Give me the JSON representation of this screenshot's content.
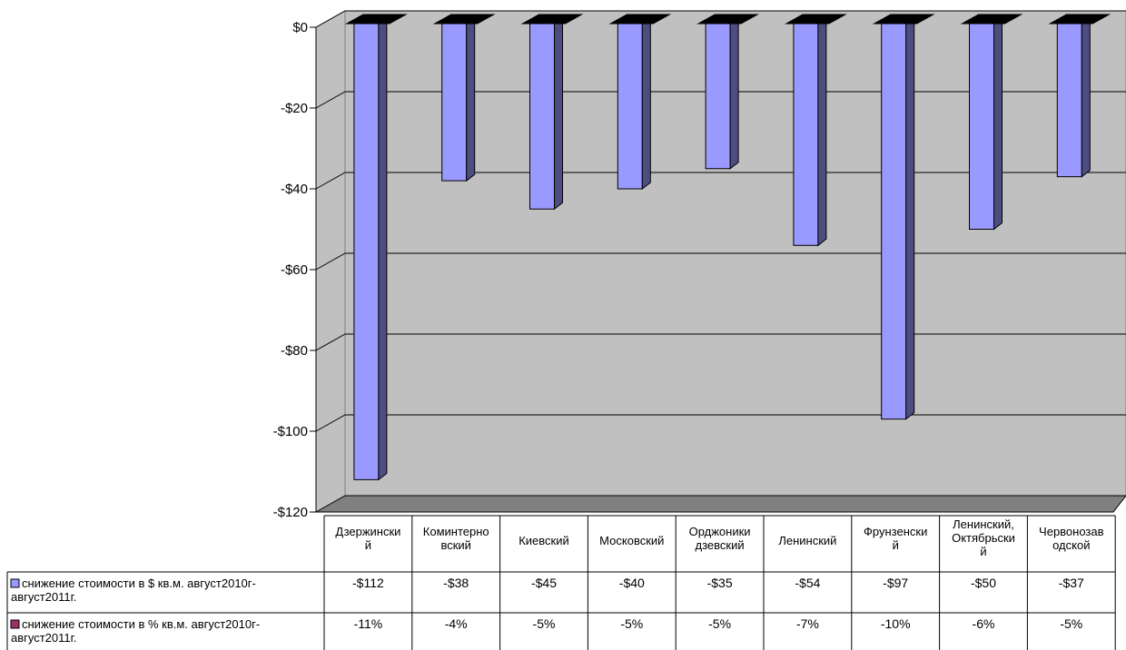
{
  "chart_data": {
    "type": "bar",
    "categories": [
      "Дзержинский",
      "Коминтерновский",
      "Киевский",
      "Московский",
      "Орджоникидзевский",
      "Ленинский",
      "Фрунзенский",
      "Ленинский, Октябрьский",
      "Червонозаводской"
    ],
    "category_label_lines": [
      [
        "Дзержински",
        "й"
      ],
      [
        "Коминтерно",
        "вский"
      ],
      [
        "Киевский"
      ],
      [
        "Московский"
      ],
      [
        "Орджоники",
        "дзевский"
      ],
      [
        "Ленинский"
      ],
      [
        "Фрунзенски",
        "й"
      ],
      [
        "Ленинский,",
        "Октябрьски",
        "й"
      ],
      [
        "Червонозав",
        "одской"
      ]
    ],
    "series": [
      {
        "name": "снижение стоимости в $ кв.м. август2010г-август2011г.",
        "name_lines": [
          "снижение стоимости в $ кв.м. август2010г-",
          "август2011г."
        ],
        "values": [
          -112,
          -38,
          -45,
          -40,
          -35,
          -54,
          -97,
          -50,
          -37
        ],
        "labels": [
          "-$112",
          "-$38",
          "-$45",
          "-$40",
          "-$35",
          "-$54",
          "-$97",
          "-$50",
          "-$37"
        ],
        "color": "#9999ff"
      },
      {
        "name": "снижение стоимости в % кв.м. август2010г-август2011г.",
        "name_lines": [
          "снижение стоимости в % кв.м. август2010г-",
          "август2011г."
        ],
        "values": [
          -11,
          -4,
          -5,
          -5,
          -5,
          -7,
          -10,
          -6,
          -5
        ],
        "labels": [
          "-11%",
          "-4%",
          "-5%",
          "-5%",
          "-5%",
          "-7%",
          "-10%",
          "-6%",
          "-5%"
        ],
        "color": "#993366"
      }
    ],
    "y_ticks": [
      0,
      -20,
      -40,
      -60,
      -80,
      -100,
      -120
    ],
    "y_tick_labels": [
      "$0",
      "-$20",
      "-$40",
      "-$60",
      "-$80",
      "-$100",
      "-$120"
    ],
    "ylim": [
      -120,
      0
    ],
    "grid": true,
    "data_table": true,
    "colors": {
      "wall": "#c0c0c0",
      "floor": "#808080",
      "bar_front": "#9999ff",
      "bar_side": "#4d4d80",
      "bar_top": "#000000"
    }
  }
}
